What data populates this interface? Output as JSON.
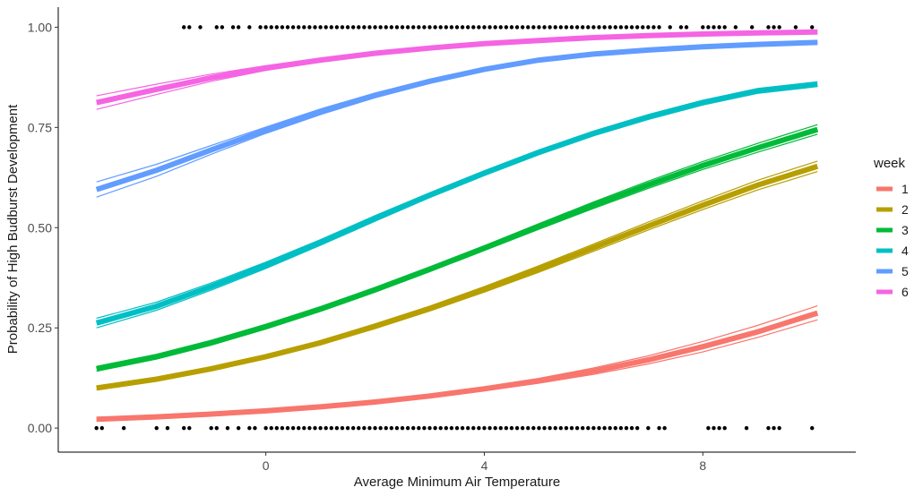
{
  "chart_data": {
    "type": "line",
    "xlabel": "Average Minimum Air Temperature",
    "ylabel": "Probability of High Budburst Development",
    "xlim": [
      -3.8,
      10.8
    ],
    "ylim": [
      -0.06,
      1.05
    ],
    "x_ticks": [
      0,
      4,
      8
    ],
    "x_tick_labels": [
      "0",
      "4",
      "8"
    ],
    "y_ticks": [
      0,
      0.25,
      0.5,
      0.75,
      1
    ],
    "y_tick_labels": [
      "0.00",
      "0.25",
      "0.50",
      "0.75",
      "1.00"
    ],
    "grid": false,
    "legend_title": "week",
    "legend_position": "right",
    "x": [
      -3.1,
      -2,
      -1,
      0,
      1,
      2,
      3,
      4,
      5,
      6,
      7,
      8,
      9,
      10.1
    ],
    "series": [
      {
        "name": "1",
        "color": "#F8766D",
        "values": [
          0.022,
          0.028,
          0.035,
          0.043,
          0.053,
          0.065,
          0.08,
          0.098,
          0.118,
          0.142,
          0.17,
          0.203,
          0.24,
          0.287
        ],
        "lower": [
          0.019,
          0.025,
          0.032,
          0.04,
          0.05,
          0.062,
          0.076,
          0.093,
          0.112,
          0.134,
          0.16,
          0.19,
          0.226,
          0.27
        ],
        "upper": [
          0.025,
          0.031,
          0.038,
          0.046,
          0.056,
          0.068,
          0.084,
          0.103,
          0.124,
          0.15,
          0.18,
          0.216,
          0.256,
          0.305
        ]
      },
      {
        "name": "2",
        "color": "#B79F00",
        "values": [
          0.1,
          0.122,
          0.148,
          0.178,
          0.213,
          0.254,
          0.298,
          0.346,
          0.397,
          0.45,
          0.504,
          0.556,
          0.606,
          0.653
        ],
        "lower": [
          0.096,
          0.118,
          0.143,
          0.173,
          0.208,
          0.248,
          0.292,
          0.339,
          0.389,
          0.441,
          0.494,
          0.545,
          0.594,
          0.64
        ],
        "upper": [
          0.104,
          0.126,
          0.153,
          0.183,
          0.218,
          0.26,
          0.304,
          0.353,
          0.405,
          0.459,
          0.514,
          0.567,
          0.618,
          0.666
        ]
      },
      {
        "name": "3",
        "color": "#00BA38",
        "values": [
          0.148,
          0.178,
          0.213,
          0.253,
          0.297,
          0.345,
          0.396,
          0.449,
          0.503,
          0.556,
          0.607,
          0.655,
          0.699,
          0.745
        ],
        "lower": [
          0.142,
          0.172,
          0.207,
          0.247,
          0.291,
          0.339,
          0.39,
          0.443,
          0.496,
          0.548,
          0.598,
          0.645,
          0.688,
          0.733
        ],
        "upper": [
          0.154,
          0.184,
          0.219,
          0.259,
          0.303,
          0.351,
          0.402,
          0.455,
          0.51,
          0.564,
          0.616,
          0.665,
          0.71,
          0.757
        ]
      },
      {
        "name": "4",
        "color": "#00BFC4",
        "values": [
          0.262,
          0.304,
          0.353,
          0.406,
          0.463,
          0.523,
          0.581,
          0.636,
          0.688,
          0.735,
          0.776,
          0.812,
          0.841,
          0.858
        ],
        "lower": [
          0.25,
          0.294,
          0.344,
          0.398,
          0.456,
          0.516,
          0.575,
          0.63,
          0.682,
          0.729,
          0.77,
          0.806,
          0.835,
          0.852
        ],
        "upper": [
          0.274,
          0.314,
          0.362,
          0.414,
          0.47,
          0.53,
          0.587,
          0.642,
          0.694,
          0.741,
          0.782,
          0.818,
          0.847,
          0.864
        ]
      },
      {
        "name": "5",
        "color": "#619CFF",
        "values": [
          0.595,
          0.643,
          0.694,
          0.743,
          0.789,
          0.83,
          0.865,
          0.895,
          0.918,
          0.933,
          0.943,
          0.951,
          0.957,
          0.962
        ],
        "lower": [
          0.576,
          0.628,
          0.683,
          0.735,
          0.782,
          0.824,
          0.86,
          0.891,
          0.915,
          0.931,
          0.941,
          0.949,
          0.955,
          0.96
        ],
        "upper": [
          0.614,
          0.658,
          0.705,
          0.751,
          0.796,
          0.836,
          0.87,
          0.899,
          0.921,
          0.935,
          0.945,
          0.953,
          0.959,
          0.964
        ]
      },
      {
        "name": "6",
        "color": "#F564E3",
        "values": [
          0.812,
          0.845,
          0.874,
          0.898,
          0.918,
          0.935,
          0.948,
          0.959,
          0.967,
          0.974,
          0.979,
          0.983,
          0.986,
          0.988
        ],
        "lower": [
          0.795,
          0.832,
          0.865,
          0.892,
          0.913,
          0.931,
          0.945,
          0.956,
          0.965,
          0.972,
          0.977,
          0.981,
          0.984,
          0.986
        ],
        "upper": [
          0.829,
          0.858,
          0.883,
          0.904,
          0.923,
          0.939,
          0.951,
          0.962,
          0.969,
          0.976,
          0.981,
          0.985,
          0.988,
          0.99
        ]
      }
    ],
    "observations_y1": [
      -1.5,
      -1.4,
      -1.2,
      -0.9,
      -0.8,
      -0.6,
      -0.5,
      -0.3,
      -0.1,
      0.0,
      0.1,
      0.2,
      0.3,
      0.4,
      0.5,
      0.6,
      0.7,
      0.8,
      0.9,
      1.0,
      1.1,
      1.2,
      1.3,
      1.4,
      1.5,
      1.6,
      1.7,
      1.8,
      1.9,
      2.0,
      2.1,
      2.2,
      2.3,
      2.4,
      2.5,
      2.6,
      2.7,
      2.8,
      2.9,
      3.0,
      3.1,
      3.2,
      3.3,
      3.4,
      3.5,
      3.6,
      3.7,
      3.8,
      3.9,
      4.0,
      4.1,
      4.2,
      4.3,
      4.4,
      4.5,
      4.6,
      4.7,
      4.8,
      4.9,
      5.0,
      5.1,
      5.2,
      5.3,
      5.4,
      5.5,
      5.6,
      5.7,
      5.8,
      5.9,
      6.0,
      6.1,
      6.2,
      6.3,
      6.4,
      6.5,
      6.6,
      6.7,
      6.8,
      6.9,
      7.0,
      7.1,
      7.2,
      7.4,
      7.6,
      7.7,
      8.0,
      8.1,
      8.2,
      8.3,
      8.4,
      8.6,
      8.9,
      9.2,
      9.3,
      9.4,
      9.7,
      10.0
    ],
    "observations_y0": [
      -3.1,
      -3.0,
      -2.6,
      -2.0,
      -1.8,
      -1.5,
      -1.4,
      -1.0,
      -0.9,
      -0.7,
      -0.5,
      -0.3,
      -0.2,
      0.0,
      0.1,
      0.2,
      0.3,
      0.4,
      0.5,
      0.6,
      0.7,
      0.8,
      0.9,
      1.0,
      1.1,
      1.2,
      1.3,
      1.4,
      1.5,
      1.6,
      1.7,
      1.8,
      1.9,
      2.0,
      2.1,
      2.2,
      2.3,
      2.4,
      2.5,
      2.6,
      2.7,
      2.8,
      2.9,
      3.0,
      3.1,
      3.2,
      3.3,
      3.4,
      3.5,
      3.6,
      3.7,
      3.8,
      3.9,
      4.0,
      4.1,
      4.2,
      4.3,
      4.4,
      4.5,
      4.6,
      4.7,
      4.8,
      4.9,
      5.0,
      5.1,
      5.2,
      5.3,
      5.4,
      5.5,
      5.6,
      5.7,
      5.8,
      5.9,
      6.0,
      6.1,
      6.2,
      6.3,
      6.4,
      6.5,
      6.6,
      6.7,
      6.8,
      7.0,
      7.2,
      7.3,
      8.1,
      8.2,
      8.3,
      8.4,
      8.8,
      9.2,
      9.3,
      9.4,
      10.0
    ]
  }
}
